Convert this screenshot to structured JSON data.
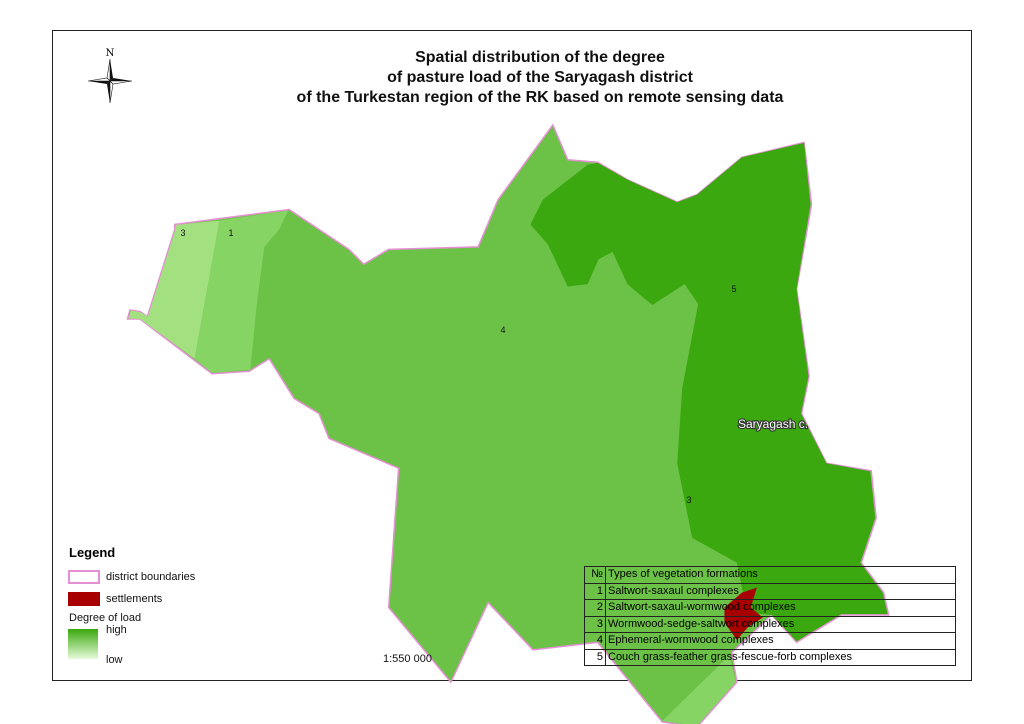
{
  "title": {
    "line1": "Spatial distribution of the degree",
    "line2": "of pasture load of the Saryagash district",
    "line3": "of the Turkestan region of the RK based on remote sensing data"
  },
  "north_arrow": {
    "label": "N",
    "icon": "compass-rose-icon"
  },
  "map": {
    "zone_labels": [
      "3",
      "1",
      "4",
      "5",
      "3"
    ],
    "settlement_label": "Saryagash c.",
    "colors": {
      "zone_3": "#a3e07f",
      "zone_1": "#86d463",
      "zone_4": "#6cc247",
      "zone_5": "#3aa80e",
      "settlement": "#a80000",
      "boundary": "#e58fd4"
    }
  },
  "legend": {
    "title": "Legend",
    "district_boundaries": "district boundaries",
    "settlements": "settlements",
    "degree_title": "Degree of load",
    "high": "high",
    "low": "low",
    "gradient_colors": [
      "#3aa80e",
      "#e6fbd9"
    ]
  },
  "scale": "1:550 000",
  "vegetation_table": {
    "header": {
      "num": "№",
      "label": "Types of vegetation formations"
    },
    "rows": [
      {
        "num": "1",
        "label": "Saltwort-saxaul complexes"
      },
      {
        "num": "2",
        "label": "Saltwort-saxaul-wormwood complexes"
      },
      {
        "num": "3",
        "label": "Wormwood-sedge-saltwort complexes"
      },
      {
        "num": "4",
        "label": "Ephemeral-wormwood complexes"
      },
      {
        "num": "5",
        "label": "Couch grass-feather grass-fescue-forb complexes"
      }
    ]
  }
}
